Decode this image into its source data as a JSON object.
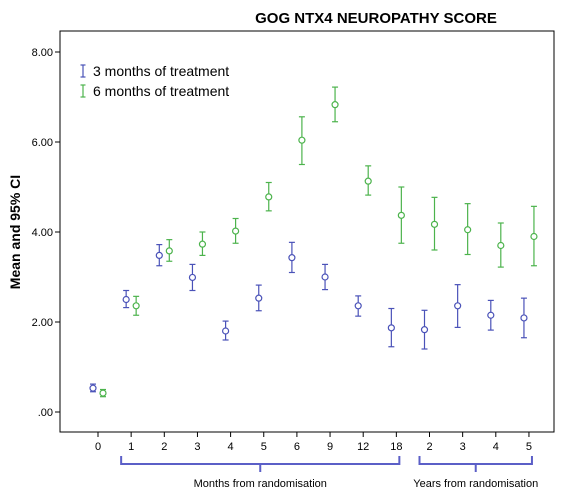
{
  "chart_data": {
    "type": "scatter",
    "title": "GOG NTX4 NEUROPATHY SCORE",
    "ylabel": "Mean and 95% CI",
    "ylim": [
      0,
      8.5
    ],
    "yticks": [
      0,
      2,
      4,
      6,
      8
    ],
    "ytick_labels": [
      ".00",
      "2.00",
      "4.00",
      "6.00",
      "8.00"
    ],
    "categories": [
      "0",
      "1",
      "2",
      "3",
      "4",
      "5",
      "6",
      "9",
      "12",
      "18",
      "2",
      "3",
      "4",
      "5"
    ],
    "category_groups": [
      {
        "label": "Months from randomisation",
        "from": 1,
        "to": 9
      },
      {
        "label": "Years from randomisation",
        "from": 10,
        "to": 13
      }
    ],
    "legend_position": "top-left",
    "grid": false,
    "series": [
      {
        "name": "3 months of treatment",
        "color": "#4a52b8",
        "marker": "error-bar",
        "values": [
          {
            "mean": 0.53,
            "low": 0.45,
            "high": 0.62
          },
          {
            "mean": 2.5,
            "low": 2.32,
            "high": 2.7
          },
          {
            "mean": 3.48,
            "low": 3.25,
            "high": 3.72
          },
          {
            "mean": 2.99,
            "low": 2.7,
            "high": 3.28
          },
          {
            "mean": 1.8,
            "low": 1.6,
            "high": 2.02
          },
          {
            "mean": 2.53,
            "low": 2.25,
            "high": 2.82
          },
          {
            "mean": 3.43,
            "low": 3.1,
            "high": 3.77
          },
          {
            "mean": 3.0,
            "low": 2.72,
            "high": 3.28
          },
          {
            "mean": 2.36,
            "low": 2.13,
            "high": 2.58
          },
          {
            "mean": 1.87,
            "low": 1.45,
            "high": 2.3
          },
          {
            "mean": 1.83,
            "low": 1.4,
            "high": 2.26
          },
          {
            "mean": 2.36,
            "low": 1.88,
            "high": 2.83
          },
          {
            "mean": 2.15,
            "low": 1.82,
            "high": 2.48
          },
          {
            "mean": 2.09,
            "low": 1.65,
            "high": 2.53
          }
        ]
      },
      {
        "name": "6 months of treatment",
        "color": "#4cb34c",
        "marker": "error-bar",
        "values": [
          {
            "mean": 0.42,
            "low": 0.34,
            "high": 0.5
          },
          {
            "mean": 2.36,
            "low": 2.15,
            "high": 2.57
          },
          {
            "mean": 3.58,
            "low": 3.35,
            "high": 3.83
          },
          {
            "mean": 3.73,
            "low": 3.48,
            "high": 4.0
          },
          {
            "mean": 4.02,
            "low": 3.75,
            "high": 4.3
          },
          {
            "mean": 4.78,
            "low": 4.47,
            "high": 5.1
          },
          {
            "mean": 6.04,
            "low": 5.5,
            "high": 6.56
          },
          {
            "mean": 6.83,
            "low": 6.45,
            "high": 7.22
          },
          {
            "mean": 5.13,
            "low": 4.82,
            "high": 5.47
          },
          {
            "mean": 4.37,
            "low": 3.75,
            "high": 5.0
          },
          {
            "mean": 4.17,
            "low": 3.6,
            "high": 4.77
          },
          {
            "mean": 4.05,
            "low": 3.5,
            "high": 4.63
          },
          {
            "mean": 3.7,
            "low": 3.22,
            "high": 4.2
          },
          {
            "mean": 3.9,
            "low": 3.25,
            "high": 4.57
          }
        ]
      }
    ]
  }
}
